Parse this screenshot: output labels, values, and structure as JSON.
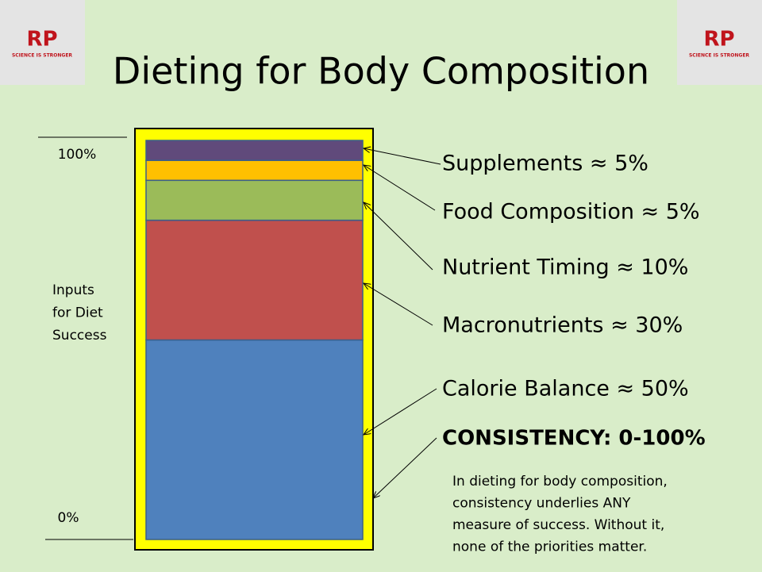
{
  "chart_data": {
    "type": "stacked-bar",
    "title": "Dieting for Body Composition",
    "y_label_lines": [
      "Inputs",
      "for Diet",
      "Success"
    ],
    "ylim": [
      0,
      100
    ],
    "yticks": [
      {
        "value": 0,
        "label": "0%"
      },
      {
        "value": 100,
        "label": "100%"
      }
    ],
    "series": [
      {
        "label": "Calorie Balance ≈ 50%",
        "value": 50,
        "color": "#4f81bd"
      },
      {
        "label": "Macronutrients ≈ 30%",
        "value": 30,
        "color": "#c0504d"
      },
      {
        "label": "Nutrient Timing ≈ 10%",
        "value": 10,
        "color": "#9bbb59"
      },
      {
        "label": "Food Composition ≈ 5%",
        "value": 5,
        "color": "#ffc000"
      },
      {
        "label": "Supplements ≈ 5%",
        "value": 5,
        "color": "#604a7b"
      }
    ],
    "consistency": "CONSISTENCY: 0-100%",
    "note_lines": [
      "In dieting for body composition,",
      "consistency underlies ANY",
      "measure of success. Without it,",
      "none of the priorities matter."
    ],
    "logo": {
      "mark": "RP",
      "tagline": "SCIENCE IS STRONGER"
    }
  }
}
